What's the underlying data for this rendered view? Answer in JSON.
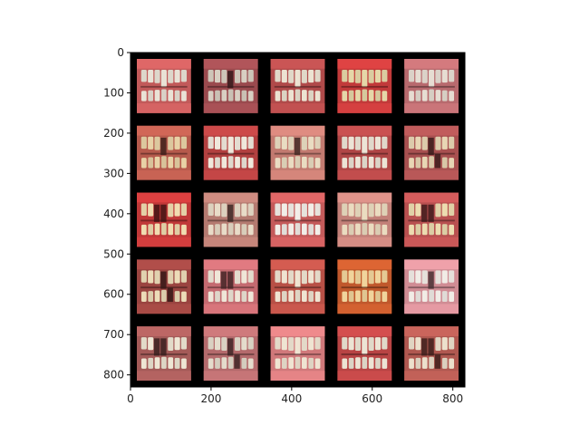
{
  "figure": {
    "background_color": "#ffffff",
    "axes_color": "#000000",
    "image_background_color": "#000000"
  },
  "axes": {
    "x_range": [
      0,
      830
    ],
    "y_range": [
      0,
      830
    ],
    "x_ticks": [
      {
        "value": 0,
        "label": "0"
      },
      {
        "value": 200,
        "label": "200"
      },
      {
        "value": 400,
        "label": "400"
      },
      {
        "value": 600,
        "label": "600"
      },
      {
        "value": 800,
        "label": "800"
      }
    ],
    "y_ticks": [
      {
        "value": 0,
        "label": "0"
      },
      {
        "value": 100,
        "label": "100"
      },
      {
        "value": 200,
        "label": "200"
      },
      {
        "value": 300,
        "label": "300"
      },
      {
        "value": 400,
        "label": "400"
      },
      {
        "value": 500,
        "label": "500"
      },
      {
        "value": 600,
        "label": "600"
      },
      {
        "value": 700,
        "label": "700"
      },
      {
        "value": 800,
        "label": "800"
      }
    ]
  },
  "image_grid": {
    "rows": 5,
    "cols": 5,
    "subject": "intraoral photographs of teeth with gum tissue, some with gaps/missing teeth",
    "tiles": [
      {
        "gum": "#c25a5a",
        "tooth": "#e9e2d6",
        "gap": false
      },
      {
        "gum": "#9a4a4e",
        "tooth": "#d8cfc2",
        "gap": true
      },
      {
        "gum": "#b04a4a",
        "tooth": "#ece3d2",
        "gap": false
      },
      {
        "gum": "#c23a3a",
        "tooth": "#e5d7a8",
        "gap": false
      },
      {
        "gum": "#b86a6e",
        "tooth": "#e6ddd2",
        "gap": false
      },
      {
        "gum": "#b65a4c",
        "tooth": "#e8d2a6",
        "gap": true
      },
      {
        "gum": "#b24040",
        "tooth": "#efe8dc",
        "gap": false
      },
      {
        "gum": "#c27a70",
        "tooth": "#e9dcc2",
        "gap": true
      },
      {
        "gum": "#b04646",
        "tooth": "#ece4d6",
        "gap": false
      },
      {
        "gum": "#a85050",
        "tooth": "#e8d6b4",
        "gap": true
      },
      {
        "gum": "#c03838",
        "tooth": "#f0dcb0",
        "gap": true
      },
      {
        "gum": "#b47a70",
        "tooth": "#e8dcc8",
        "gap": true
      },
      {
        "gum": "#c45a5a",
        "tooth": "#f2eee8",
        "gap": false
      },
      {
        "gum": "#c28078",
        "tooth": "#eadcc0",
        "gap": false
      },
      {
        "gum": "#b85050",
        "tooth": "#ecdcb0",
        "gap": true
      },
      {
        "gum": "#9a4440",
        "tooth": "#ecdcb8",
        "gap": true
      },
      {
        "gum": "#c46a70",
        "tooth": "#efe6d8",
        "gap": true
      },
      {
        "gum": "#b85046",
        "tooth": "#efe4d2",
        "gap": false
      },
      {
        "gum": "#c0582c",
        "tooth": "#f0d49c",
        "gap": false
      },
      {
        "gum": "#d08c94",
        "tooth": "#f1ece6",
        "gap": true
      },
      {
        "gum": "#a45a58",
        "tooth": "#eee6d4",
        "gap": true
      },
      {
        "gum": "#b46a6c",
        "tooth": "#e4dccc",
        "gap": true
      },
      {
        "gum": "#d0787a",
        "tooth": "#efe4d2",
        "gap": false
      },
      {
        "gum": "#b84444",
        "tooth": "#ece4d4",
        "gap": false
      },
      {
        "gum": "#b05850",
        "tooth": "#ece0cc",
        "gap": true
      }
    ]
  }
}
